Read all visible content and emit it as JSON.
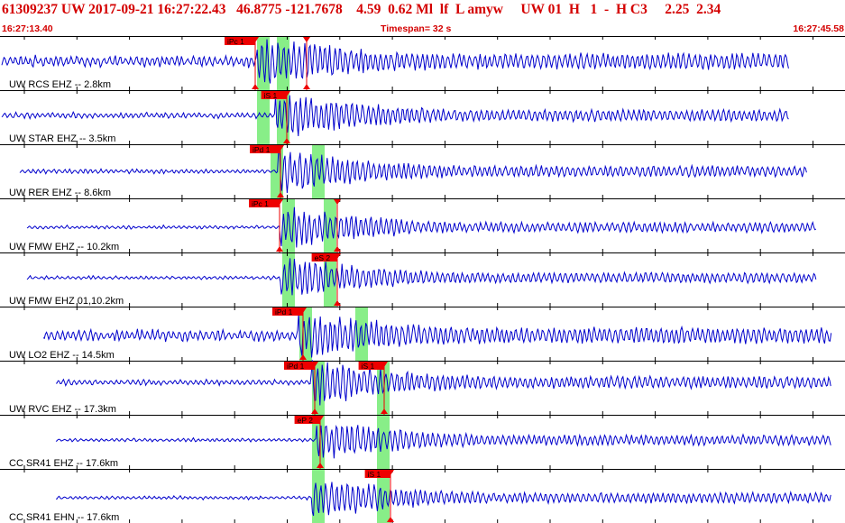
{
  "header": {
    "title": "61309237 UW 2017-09-21 16:27:22.43   46.8775 -121.7678    4.59  0.62 Ml  lf  L amyw     UW 01  H   1  -  H C3     2.25  2.34",
    "time_start": "16:27:13.40",
    "timespan": "Timespan=  32 s",
    "time_end": "16:27:45.58"
  },
  "colors": {
    "trace": "#0000cc",
    "pick": "#ee0000",
    "window": "#88ee88",
    "header_text": "#d40000"
  },
  "icons": {
    "pick_marker": "red-triangle-icon"
  },
  "traces": [
    {
      "label": "UW RCS EHZ -- 2.8km",
      "picks": [
        {
          "label": "iPc 1",
          "type": "P"
        },
        {
          "label": "",
          "type": "S"
        }
      ]
    },
    {
      "label": "UW STAR EHZ -- 3.5km",
      "picks": [
        {
          "label": "iS 1",
          "type": "S"
        }
      ]
    },
    {
      "label": "UW RER EHZ -- 8.6km",
      "picks": [
        {
          "label": "iPd 1",
          "type": "P"
        }
      ]
    },
    {
      "label": "UW FMW EHZ -- 10.2km",
      "picks": [
        {
          "label": "iPc 1",
          "type": "P"
        },
        {
          "label": "",
          "type": "S"
        }
      ]
    },
    {
      "label": "UW FMW EHZ 01,10.2km",
      "picks": [
        {
          "label": "eS 2",
          "type": "S"
        }
      ]
    },
    {
      "label": "UW LO2 EHZ -- 14.5km",
      "picks": [
        {
          "label": "iPd 1",
          "type": "P"
        }
      ]
    },
    {
      "label": "UW RVC EHZ -- 17.3km",
      "picks": [
        {
          "label": "iPd 1",
          "type": "P"
        },
        {
          "label": "iS 1",
          "type": "S"
        }
      ]
    },
    {
      "label": "CC SR41 EHZ -- 17.6km",
      "picks": [
        {
          "label": "eP 2",
          "type": "P"
        }
      ]
    },
    {
      "label": "CC SR41 EHN -- 17.6km",
      "picks": [
        {
          "label": "iS 1",
          "type": "S"
        }
      ]
    }
  ]
}
